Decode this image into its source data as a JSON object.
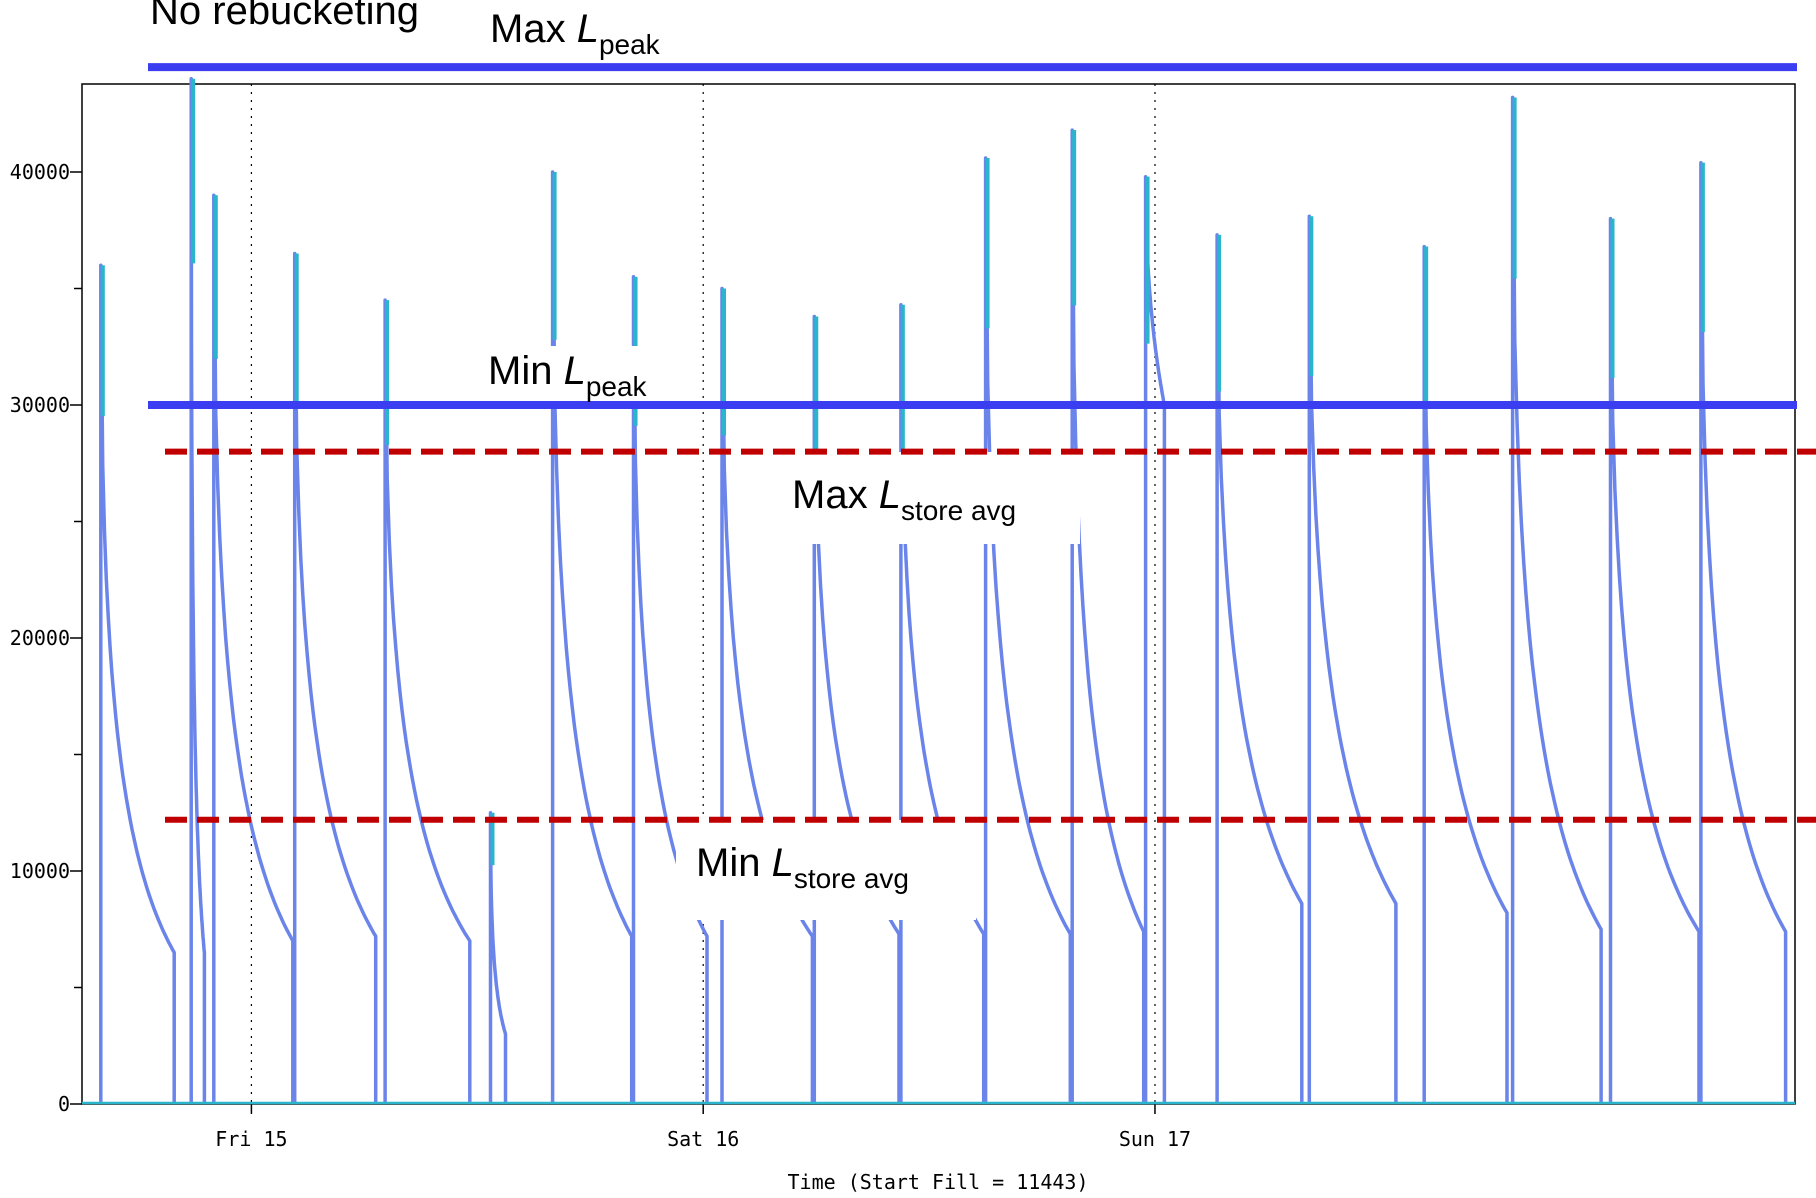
{
  "chart_data": {
    "type": "line",
    "title": "No rebucketing",
    "xlabel": "Time (Start Fill = 11443)",
    "ylabel": "",
    "ylim": [
      0,
      44000
    ],
    "xlim": [
      0,
      91
    ],
    "x_unit": "hours",
    "yticks_major": [
      "0",
      "10000",
      "20000",
      "30000",
      "40000"
    ],
    "xticks": [
      {
        "x": 9,
        "label": "Fri 15"
      },
      {
        "x": 33,
        "label": "Sat 16"
      },
      {
        "x": 57,
        "label": "Sun 17"
      }
    ],
    "grid": "vertical dotted at day boundaries",
    "colors": {
      "series": "#6a84ea",
      "highlight": "#2ab5cc",
      "peak_line": "#3b3ef0",
      "avg_line": "#c00000"
    },
    "stores": [
      {
        "start": 1.0,
        "end": 4.9,
        "peak": 36000,
        "final": 6500
      },
      {
        "start": 5.8,
        "end": 6.5,
        "peak": 44000,
        "final": 6500
      },
      {
        "start": 7.0,
        "end": 11.2,
        "peak": 39000,
        "final": 7000
      },
      {
        "start": 11.3,
        "end": 15.6,
        "peak": 36500,
        "final": 7200
      },
      {
        "start": 16.1,
        "end": 20.6,
        "peak": 34500,
        "final": 7000
      },
      {
        "start": 21.7,
        "end": 22.5,
        "peak": 12500,
        "final": 3000
      },
      {
        "start": 25.0,
        "end": 29.2,
        "peak": 40000,
        "final": 7200
      },
      {
        "start": 29.3,
        "end": 33.2,
        "peak": 35500,
        "final": 7200
      },
      {
        "start": 34.0,
        "end": 38.8,
        "peak": 35000,
        "final": 7200
      },
      {
        "start": 38.9,
        "end": 43.4,
        "peak": 33800,
        "final": 7300
      },
      {
        "start": 43.5,
        "end": 47.9,
        "peak": 34300,
        "final": 7300
      },
      {
        "start": 48.0,
        "end": 52.5,
        "peak": 40600,
        "final": 7300
      },
      {
        "start": 52.6,
        "end": 56.4,
        "peak": 41800,
        "final": 7400
      },
      {
        "start": 56.5,
        "end": 57.5,
        "peak": 39800,
        "final": 30000
      },
      {
        "start": 60.3,
        "end": 64.8,
        "peak": 37300,
        "final": 8600
      },
      {
        "start": 65.2,
        "end": 69.8,
        "peak": 38100,
        "final": 8600
      },
      {
        "start": 71.3,
        "end": 75.7,
        "peak": 36800,
        "final": 8200
      },
      {
        "start": 76.0,
        "end": 80.7,
        "peak": 43200,
        "final": 7500
      },
      {
        "start": 81.2,
        "end": 85.9,
        "peak": 38000,
        "final": 7400
      },
      {
        "start": 86.0,
        "end": 90.5,
        "peak": 40400,
        "final": 7400
      }
    ],
    "reference_lines": [
      {
        "label_main": "Max ",
        "label_var": "L",
        "label_sub": "peak",
        "value": 44500,
        "style": "solid"
      },
      {
        "label_main": "Min ",
        "label_var": "L",
        "label_sub": "peak",
        "value": 30000,
        "style": "solid"
      },
      {
        "label_main": "Max ",
        "label_var": "L",
        "label_sub": "store avg",
        "value": 28000,
        "style": "dashed"
      },
      {
        "label_main": "Min ",
        "label_var": "L",
        "label_sub": "store avg",
        "value": 12200,
        "style": "dashed"
      }
    ]
  }
}
